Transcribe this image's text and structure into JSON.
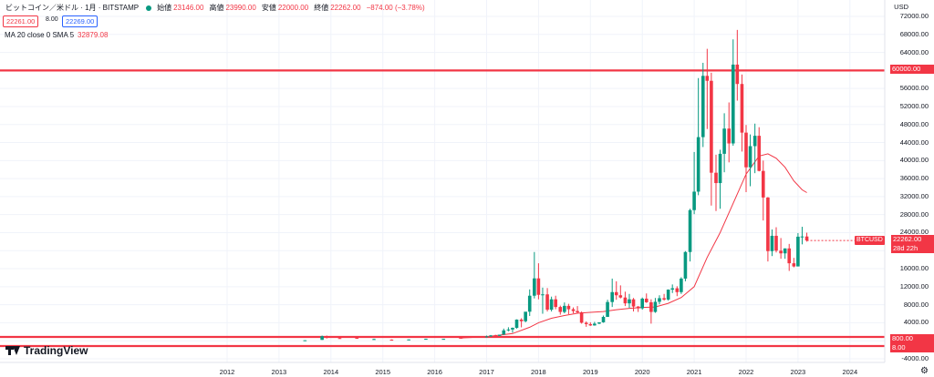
{
  "header": {
    "title": "ビットコイン／米ドル · 1月 · BITSTAMP",
    "open_label": "始値",
    "open_value": "23146.00",
    "high_label": "高値",
    "high_value": "23990.00",
    "low_label": "安値",
    "low_value": "22000.00",
    "close_label": "終値",
    "close_value": "22262.00",
    "change": "−874.00 (−3.78%)"
  },
  "quote": {
    "bid": "22261.00",
    "spread": "8.00",
    "ask": "22269.00"
  },
  "indicator": {
    "label": "MA 20 close 0 SMA 5",
    "value": "32879.08"
  },
  "price_axis": {
    "currency": "USD",
    "ticks": [
      "72000.00",
      "68000.00",
      "64000.00",
      "56000.00",
      "52000.00",
      "48000.00",
      "44000.00",
      "40000.00",
      "36000.00",
      "32000.00",
      "28000.00",
      "24000.00",
      "16000.00",
      "12000.00",
      "8000.00",
      "4000.00",
      "-4000.00"
    ]
  },
  "levels": [
    {
      "price": 60000,
      "label": "60000.00"
    },
    {
      "price": 800,
      "label": "800.00"
    },
    {
      "price": 8,
      "label": "8.00"
    }
  ],
  "last_price": {
    "ticker": "BTCUSD",
    "price": "22262.00",
    "countdown": "28d 22h"
  },
  "time_axis": {
    "labels": [
      "2012",
      "2013",
      "2014",
      "2015",
      "2016",
      "2017",
      "2018",
      "2019",
      "2020",
      "2021",
      "2022",
      "2023",
      "2024"
    ]
  },
  "brand": {
    "name": "TradingView"
  },
  "colors": {
    "up": "#089981",
    "down": "#f23645",
    "ma": "#f23645",
    "level": "#f23645"
  },
  "chart_data": {
    "type": "candlestick",
    "y_range": [
      -4000,
      72000
    ],
    "x_range": [
      2012,
      2024
    ],
    "candles": [
      {
        "t": 2013.83,
        "o": 200,
        "h": 1150,
        "l": 190,
        "c": 1000
      },
      {
        "t": 2013.92,
        "o": 1000,
        "h": 1160,
        "l": 500,
        "c": 750
      },
      {
        "t": 2017.0,
        "o": 960,
        "h": 1150,
        "l": 750,
        "c": 970
      },
      {
        "t": 2017.08,
        "o": 970,
        "h": 1280,
        "l": 900,
        "c": 1190
      },
      {
        "t": 2017.17,
        "o": 1190,
        "h": 1350,
        "l": 890,
        "c": 1080
      },
      {
        "t": 2017.25,
        "o": 1080,
        "h": 1350,
        "l": 1060,
        "c": 1350
      },
      {
        "t": 2017.33,
        "o": 1350,
        "h": 2700,
        "l": 1350,
        "c": 2300
      },
      {
        "t": 2017.42,
        "o": 2300,
        "h": 3000,
        "l": 2100,
        "c": 2500
      },
      {
        "t": 2017.5,
        "o": 2500,
        "h": 2950,
        "l": 1800,
        "c": 2870
      },
      {
        "t": 2017.58,
        "o": 2870,
        "h": 4750,
        "l": 2700,
        "c": 4700
      },
      {
        "t": 2017.67,
        "o": 4700,
        "h": 5000,
        "l": 2980,
        "c": 4340
      },
      {
        "t": 2017.75,
        "o": 4340,
        "h": 6400,
        "l": 4100,
        "c": 6450
      },
      {
        "t": 2017.83,
        "o": 6450,
        "h": 11400,
        "l": 5500,
        "c": 10000
      },
      {
        "t": 2017.92,
        "o": 10000,
        "h": 19700,
        "l": 9400,
        "c": 13850
      },
      {
        "t": 2018.0,
        "o": 13850,
        "h": 17200,
        "l": 9200,
        "c": 10200
      },
      {
        "t": 2018.08,
        "o": 10200,
        "h": 11800,
        "l": 6000,
        "c": 10300
      },
      {
        "t": 2018.17,
        "o": 10300,
        "h": 11700,
        "l": 6500,
        "c": 6900
      },
      {
        "t": 2018.25,
        "o": 6900,
        "h": 9800,
        "l": 6500,
        "c": 9200
      },
      {
        "t": 2018.33,
        "o": 9200,
        "h": 10000,
        "l": 7000,
        "c": 7500
      },
      {
        "t": 2018.42,
        "o": 7500,
        "h": 7800,
        "l": 5800,
        "c": 6400
      },
      {
        "t": 2018.5,
        "o": 6400,
        "h": 8500,
        "l": 6100,
        "c": 7750
      },
      {
        "t": 2018.58,
        "o": 7750,
        "h": 8200,
        "l": 5900,
        "c": 7000
      },
      {
        "t": 2018.67,
        "o": 7000,
        "h": 7400,
        "l": 6100,
        "c": 6600
      },
      {
        "t": 2018.75,
        "o": 6600,
        "h": 7700,
        "l": 6200,
        "c": 6300
      },
      {
        "t": 2018.83,
        "o": 6300,
        "h": 6500,
        "l": 3800,
        "c": 4000
      },
      {
        "t": 2018.92,
        "o": 4000,
        "h": 4300,
        "l": 3100,
        "c": 3700
      },
      {
        "t": 2019.0,
        "o": 3700,
        "h": 4100,
        "l": 3300,
        "c": 3400
      },
      {
        "t": 2019.08,
        "o": 3400,
        "h": 4200,
        "l": 3350,
        "c": 3800
      },
      {
        "t": 2019.17,
        "o": 3800,
        "h": 4100,
        "l": 3700,
        "c": 4100
      },
      {
        "t": 2019.25,
        "o": 4100,
        "h": 5600,
        "l": 4000,
        "c": 5300
      },
      {
        "t": 2019.33,
        "o": 5300,
        "h": 9100,
        "l": 5300,
        "c": 8600
      },
      {
        "t": 2019.42,
        "o": 8600,
        "h": 13800,
        "l": 7500,
        "c": 10800
      },
      {
        "t": 2019.5,
        "o": 10800,
        "h": 13200,
        "l": 9100,
        "c": 10100
      },
      {
        "t": 2019.58,
        "o": 10100,
        "h": 12300,
        "l": 9400,
        "c": 9600
      },
      {
        "t": 2019.67,
        "o": 9600,
        "h": 10900,
        "l": 7700,
        "c": 8300
      },
      {
        "t": 2019.75,
        "o": 8300,
        "h": 10400,
        "l": 7300,
        "c": 9200
      },
      {
        "t": 2019.83,
        "o": 9200,
        "h": 9500,
        "l": 6500,
        "c": 7600
      },
      {
        "t": 2019.92,
        "o": 7600,
        "h": 7700,
        "l": 6400,
        "c": 7200
      },
      {
        "t": 2020.0,
        "o": 7200,
        "h": 9600,
        "l": 6900,
        "c": 9350
      },
      {
        "t": 2020.08,
        "o": 9350,
        "h": 10500,
        "l": 8400,
        "c": 8550
      },
      {
        "t": 2020.17,
        "o": 8550,
        "h": 9200,
        "l": 3800,
        "c": 6400
      },
      {
        "t": 2020.25,
        "o": 6400,
        "h": 9500,
        "l": 6200,
        "c": 8650
      },
      {
        "t": 2020.33,
        "o": 8650,
        "h": 10100,
        "l": 8100,
        "c": 9450
      },
      {
        "t": 2020.42,
        "o": 9450,
        "h": 10400,
        "l": 8900,
        "c": 9150
      },
      {
        "t": 2020.5,
        "o": 9150,
        "h": 11400,
        "l": 8900,
        "c": 11350
      },
      {
        "t": 2020.58,
        "o": 11350,
        "h": 12500,
        "l": 10600,
        "c": 11650
      },
      {
        "t": 2020.67,
        "o": 11650,
        "h": 12100,
        "l": 9900,
        "c": 10800
      },
      {
        "t": 2020.75,
        "o": 10800,
        "h": 14100,
        "l": 10400,
        "c": 13800
      },
      {
        "t": 2020.83,
        "o": 13800,
        "h": 19900,
        "l": 13200,
        "c": 19700
      },
      {
        "t": 2020.92,
        "o": 19700,
        "h": 29300,
        "l": 17600,
        "c": 29000
      },
      {
        "t": 2021.0,
        "o": 29000,
        "h": 41900,
        "l": 28100,
        "c": 33100
      },
      {
        "t": 2021.08,
        "o": 33100,
        "h": 58300,
        "l": 32300,
        "c": 45200
      },
      {
        "t": 2021.17,
        "o": 45200,
        "h": 61700,
        "l": 43000,
        "c": 58800
      },
      {
        "t": 2021.25,
        "o": 58800,
        "h": 64800,
        "l": 47000,
        "c": 57700
      },
      {
        "t": 2021.33,
        "o": 57700,
        "h": 59500,
        "l": 30000,
        "c": 37300
      },
      {
        "t": 2021.42,
        "o": 37300,
        "h": 41300,
        "l": 28800,
        "c": 35000
      },
      {
        "t": 2021.5,
        "o": 35000,
        "h": 42400,
        "l": 29300,
        "c": 41500
      },
      {
        "t": 2021.58,
        "o": 41500,
        "h": 50500,
        "l": 37400,
        "c": 47100
      },
      {
        "t": 2021.67,
        "o": 47100,
        "h": 52900,
        "l": 39600,
        "c": 43800
      },
      {
        "t": 2021.75,
        "o": 43800,
        "h": 66900,
        "l": 43300,
        "c": 61300
      },
      {
        "t": 2021.83,
        "o": 61300,
        "h": 69000,
        "l": 53300,
        "c": 57000
      },
      {
        "t": 2021.92,
        "o": 57000,
        "h": 59100,
        "l": 42000,
        "c": 46200
      },
      {
        "t": 2022.0,
        "o": 46200,
        "h": 47900,
        "l": 33000,
        "c": 38500
      },
      {
        "t": 2022.08,
        "o": 38500,
        "h": 45800,
        "l": 34300,
        "c": 43200
      },
      {
        "t": 2022.17,
        "o": 43200,
        "h": 48200,
        "l": 37200,
        "c": 45500
      },
      {
        "t": 2022.25,
        "o": 45500,
        "h": 47400,
        "l": 37600,
        "c": 37700
      },
      {
        "t": 2022.33,
        "o": 37700,
        "h": 40000,
        "l": 26700,
        "c": 31800
      },
      {
        "t": 2022.42,
        "o": 31800,
        "h": 31900,
        "l": 17600,
        "c": 19900
      },
      {
        "t": 2022.5,
        "o": 19900,
        "h": 24700,
        "l": 18800,
        "c": 23300
      },
      {
        "t": 2022.58,
        "o": 23300,
        "h": 25200,
        "l": 19600,
        "c": 20000
      },
      {
        "t": 2022.67,
        "o": 20000,
        "h": 22800,
        "l": 18200,
        "c": 19400
      },
      {
        "t": 2022.75,
        "o": 19400,
        "h": 20500,
        "l": 18200,
        "c": 20500
      },
      {
        "t": 2022.83,
        "o": 20500,
        "h": 21500,
        "l": 15500,
        "c": 17200
      },
      {
        "t": 2022.92,
        "o": 17200,
        "h": 18400,
        "l": 16300,
        "c": 16500
      },
      {
        "t": 2023.0,
        "o": 16500,
        "h": 23900,
        "l": 16500,
        "c": 23100
      },
      {
        "t": 2023.08,
        "o": 23100,
        "h": 25300,
        "l": 21400,
        "c": 23150
      },
      {
        "t": 2023.17,
        "o": 23146,
        "h": 23990,
        "l": 22000,
        "c": 22262
      }
    ],
    "sma": [
      {
        "t": 2016.5,
        "v": 600
      },
      {
        "t": 2017.0,
        "v": 900
      },
      {
        "t": 2017.5,
        "v": 1600
      },
      {
        "t": 2017.83,
        "v": 3000
      },
      {
        "t": 2018.0,
        "v": 4000
      },
      {
        "t": 2018.25,
        "v": 5000
      },
      {
        "t": 2018.5,
        "v": 5600
      },
      {
        "t": 2018.75,
        "v": 6100
      },
      {
        "t": 2019.0,
        "v": 6300
      },
      {
        "t": 2019.25,
        "v": 6500
      },
      {
        "t": 2019.5,
        "v": 6900
      },
      {
        "t": 2019.75,
        "v": 7200
      },
      {
        "t": 2020.0,
        "v": 7400
      },
      {
        "t": 2020.25,
        "v": 7500
      },
      {
        "t": 2020.5,
        "v": 8300
      },
      {
        "t": 2020.75,
        "v": 9600
      },
      {
        "t": 2021.0,
        "v": 12000
      },
      {
        "t": 2021.25,
        "v": 18500
      },
      {
        "t": 2021.5,
        "v": 24000
      },
      {
        "t": 2021.75,
        "v": 30500
      },
      {
        "t": 2022.0,
        "v": 37000
      },
      {
        "t": 2022.25,
        "v": 41000
      },
      {
        "t": 2022.42,
        "v": 41500
      },
      {
        "t": 2022.58,
        "v": 40500
      },
      {
        "t": 2022.75,
        "v": 38500
      },
      {
        "t": 2022.92,
        "v": 35500
      },
      {
        "t": 2023.08,
        "v": 33500
      },
      {
        "t": 2023.17,
        "v": 32879
      }
    ],
    "sub_candles": [
      {
        "t": 2013.5,
        "o": 100,
        "h": 120,
        "l": 70,
        "c": 110
      },
      {
        "t": 2014.17,
        "o": 600,
        "h": 700,
        "l": 450,
        "c": 460
      },
      {
        "t": 2014.5,
        "o": 640,
        "h": 650,
        "l": 560,
        "c": 580
      },
      {
        "t": 2014.83,
        "o": 340,
        "h": 460,
        "l": 300,
        "c": 380
      },
      {
        "t": 2015.17,
        "o": 250,
        "h": 300,
        "l": 200,
        "c": 240
      },
      {
        "t": 2015.5,
        "o": 260,
        "h": 320,
        "l": 250,
        "c": 290
      },
      {
        "t": 2015.83,
        "o": 360,
        "h": 460,
        "l": 300,
        "c": 430
      },
      {
        "t": 2016.17,
        "o": 420,
        "h": 440,
        "l": 380,
        "c": 420
      },
      {
        "t": 2016.5,
        "o": 670,
        "h": 780,
        "l": 600,
        "c": 650
      }
    ]
  }
}
